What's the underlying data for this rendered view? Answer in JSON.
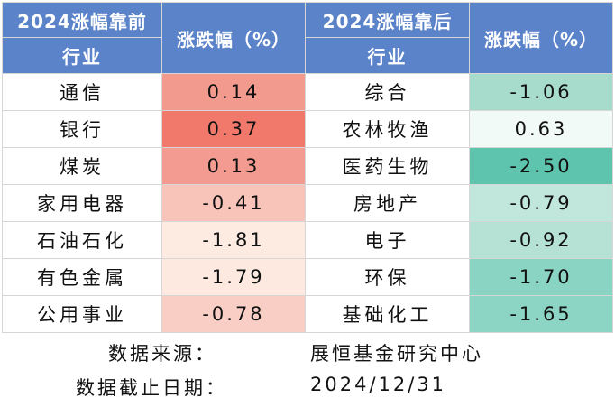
{
  "header": {
    "left_title": "2024涨幅靠前",
    "left_industry": "行业",
    "left_change": "涨跌幅（%）",
    "right_title": "2024涨幅靠后",
    "right_industry": "行业",
    "right_change": "涨跌幅（%）"
  },
  "rows": [
    {
      "top_name": "通信",
      "top_value": "0.14",
      "top_color": "#f39a8f",
      "bottom_name": "综合",
      "bottom_value": "-1.06",
      "bottom_color": "#a7dccd"
    },
    {
      "top_name": "银行",
      "top_value": "0.37",
      "top_color": "#f0796c",
      "bottom_name": "农林牧渔",
      "bottom_value": "0.63",
      "bottom_color": "#f2faf7"
    },
    {
      "top_name": "煤炭",
      "top_value": "0.13",
      "top_color": "#f39b90",
      "bottom_name": "医药生物",
      "bottom_value": "-2.50",
      "bottom_color": "#5fc4ad"
    },
    {
      "top_name": "家用电器",
      "top_value": "-0.41",
      "top_color": "#f8c3b8",
      "bottom_name": "房地产",
      "bottom_value": "-0.79",
      "bottom_color": "#c1e7dc"
    },
    {
      "top_name": "石油石化",
      "top_value": "-1.81",
      "top_color": "#fdeae0",
      "bottom_name": "电子",
      "bottom_value": "-0.92",
      "bottom_color": "#b5e2d5"
    },
    {
      "top_name": "有色金属",
      "top_value": "-1.79",
      "top_color": "#fde9df",
      "bottom_name": "环保",
      "bottom_value": "-1.70",
      "bottom_color": "#8ad4c3"
    },
    {
      "top_name": "公用事业",
      "top_value": "-0.78",
      "top_color": "#f9cfc5",
      "bottom_name": "基础化工",
      "bottom_value": "-1.65",
      "bottom_color": "#8cd4c3"
    }
  ],
  "footer": {
    "source_label": "数据来源：",
    "source_value": "展恒基金研究中心",
    "date_label": "数据截止日期：",
    "date_value": "2024/12/31"
  },
  "colors": {
    "header_bg": "#5b83c9",
    "header_text": "#ffffff"
  }
}
